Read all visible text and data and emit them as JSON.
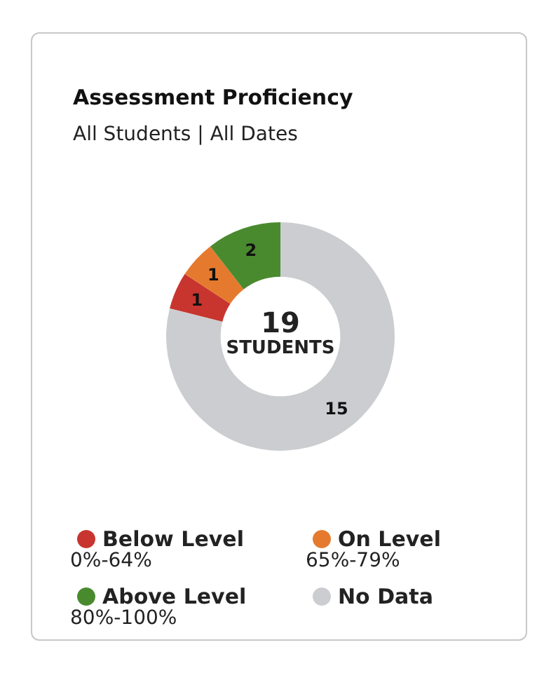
{
  "chart_data": {
    "type": "donut",
    "title": "Assessment Proficiency",
    "subtitle": "All Students | All Dates",
    "categories": [
      "Below Level",
      "On Level",
      "Above Level",
      "No Data"
    ],
    "values": [
      1,
      1,
      2,
      15
    ],
    "colors": [
      "#c8352f",
      "#e57a2e",
      "#4a8a2f",
      "#cbcdd0"
    ],
    "data_labels": true,
    "legend": "bottom",
    "annotations": [
      "19",
      "STUDENTS",
      "0%-64%",
      "65%-79%",
      "80%-100%"
    ]
  }
}
